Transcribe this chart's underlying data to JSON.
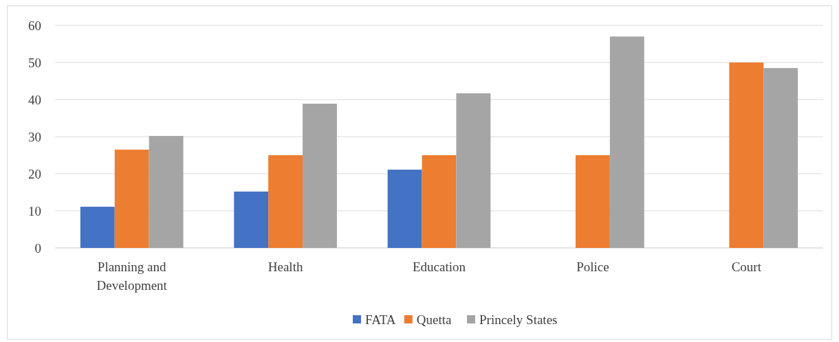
{
  "chart_data": {
    "type": "bar",
    "categories": [
      "Planning and Development",
      "Health",
      "Education",
      "Police",
      "Court"
    ],
    "series": [
      {
        "name": "FATA",
        "color": "#4472c4",
        "values": [
          11.1,
          15.2,
          21.1,
          null,
          null
        ]
      },
      {
        "name": "Quetta",
        "color": "#ed7d31",
        "values": [
          26.5,
          25,
          25,
          25,
          50
        ]
      },
      {
        "name": "Princely States",
        "color": "#a5a5a5",
        "values": [
          30.2,
          38.9,
          41.7,
          57,
          48.5
        ]
      }
    ],
    "ylim": [
      0,
      60
    ],
    "yticks": [
      0,
      10,
      20,
      30,
      40,
      50,
      60
    ],
    "grid": "y",
    "legend": "bottom"
  }
}
